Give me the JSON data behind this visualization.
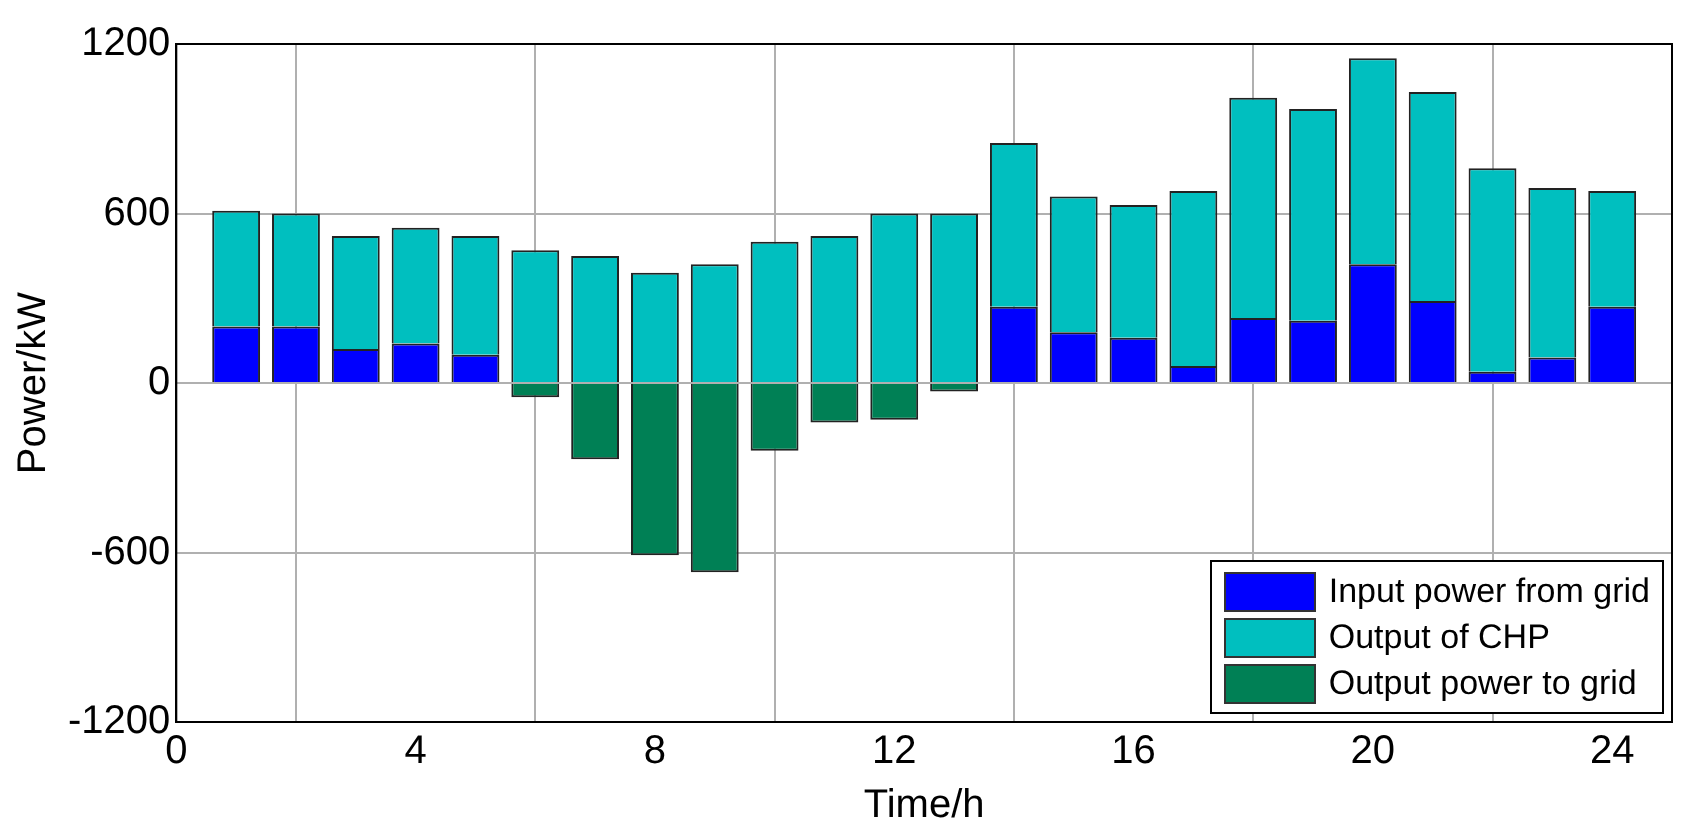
{
  "chart_data": {
    "type": "bar",
    "stacked": true,
    "xlabel": "Time/h",
    "ylabel": "Power/kW",
    "x": [
      1,
      2,
      3,
      4,
      5,
      6,
      7,
      8,
      9,
      10,
      11,
      12,
      13,
      14,
      15,
      16,
      17,
      18,
      19,
      20,
      21,
      22,
      23,
      24
    ],
    "series": [
      {
        "name": "Input power from grid",
        "color": "#0000ff",
        "values": [
          200,
          200,
          120,
          140,
          100,
          null,
          null,
          null,
          null,
          null,
          null,
          null,
          null,
          270,
          180,
          160,
          60,
          230,
          220,
          420,
          290,
          40,
          90,
          270
        ]
      },
      {
        "name": "Output of CHP",
        "color": "#00bfbf",
        "values": [
          410,
          400,
          400,
          410,
          420,
          470,
          450,
          390,
          420,
          500,
          520,
          600,
          600,
          580,
          480,
          470,
          620,
          780,
          750,
          730,
          740,
          720,
          600,
          410
        ]
      },
      {
        "name": "Output power to grid",
        "color": "#008055",
        "values": [
          null,
          null,
          null,
          null,
          null,
          -50,
          -270,
          -610,
          -670,
          -240,
          -140,
          -130,
          -30,
          null,
          null,
          null,
          null,
          null,
          null,
          null,
          null,
          null,
          null,
          null
        ]
      }
    ],
    "xlim": [
      0,
      25
    ],
    "xticks": [
      0,
      4,
      8,
      12,
      16,
      20,
      24
    ],
    "ylim": [
      -1200,
      1200
    ],
    "yticks": [
      -1200,
      -600,
      0,
      600,
      1200
    ],
    "grid": true,
    "legend": "bottom right"
  }
}
